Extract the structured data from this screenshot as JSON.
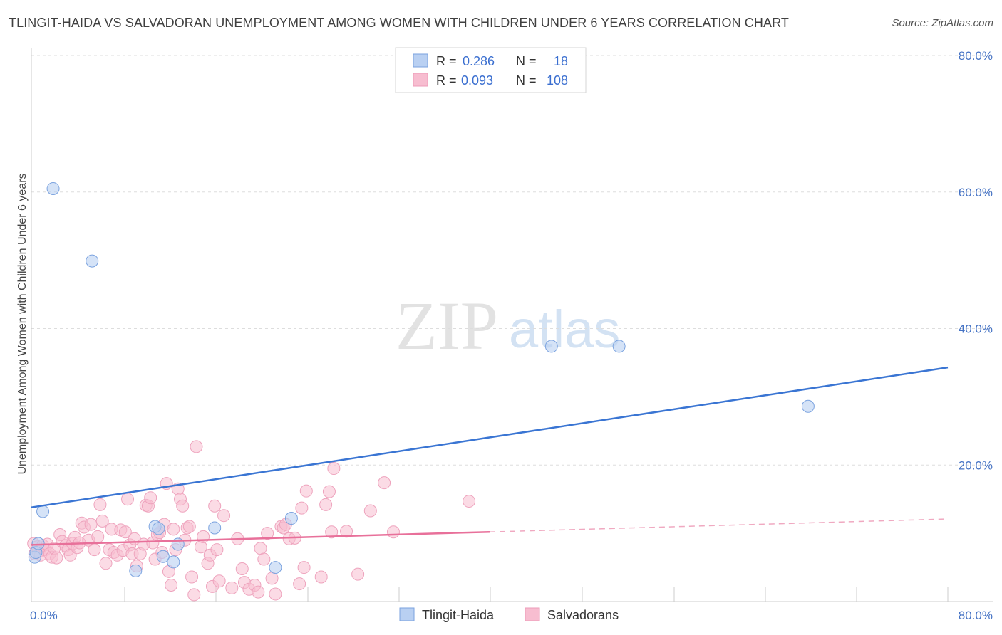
{
  "title": "TLINGIT-HAIDA VS SALVADORAN UNEMPLOYMENT AMONG WOMEN WITH CHILDREN UNDER 6 YEARS CORRELATION CHART",
  "source": "Source: ZipAtlas.com",
  "watermark": {
    "zip": "ZIP",
    "atlas": "atlas"
  },
  "colors": {
    "blue": "#4f86d9",
    "blue_fill": "#b9d0f2",
    "pink": "#e8709a",
    "pink_fill": "#f7bdd0",
    "grid": "#dddddd",
    "tick_text": "#4472c4"
  },
  "legend_top": {
    "rows": [
      {
        "r_label": "R =",
        "r_value": "0.286",
        "n_label": "N =",
        "n_value": "18"
      },
      {
        "r_label": "R =",
        "r_value": "0.093",
        "n_label": "N =",
        "n_value": "108"
      }
    ]
  },
  "legend_bottom": [
    "Tlingit-Haida",
    "Salvadorans"
  ],
  "chart_data": {
    "type": "scatter",
    "title": "TLINGIT-HAIDA VS SALVADORAN UNEMPLOYMENT AMONG WOMEN WITH CHILDREN UNDER 6 YEARS CORRELATION CHART",
    "xlabel": "",
    "ylabel": "Unemployment Among Women with Children Under 6 years",
    "xlim": [
      0,
      80
    ],
    "ylim": [
      0,
      80
    ],
    "x_tick_labels": [
      "0.0%",
      "80.0%"
    ],
    "y_tick_labels": [
      "20.0%",
      "40.0%",
      "60.0%",
      "80.0%"
    ],
    "y_ticks": [
      20,
      40,
      60,
      80
    ],
    "series": [
      {
        "name": "Tlingit-Haida",
        "r": 0.286,
        "n": 18,
        "trend": {
          "x": [
            0,
            80
          ],
          "y": [
            13.8,
            34.3
          ]
        },
        "points": [
          [
            0.3,
            6.5
          ],
          [
            0.4,
            7.2
          ],
          [
            0.6,
            8.5
          ],
          [
            1.0,
            13.2
          ],
          [
            1.9,
            60.5
          ],
          [
            5.3,
            49.9
          ],
          [
            9.1,
            4.5
          ],
          [
            10.8,
            11.0
          ],
          [
            11.1,
            10.7
          ],
          [
            11.5,
            6.6
          ],
          [
            12.4,
            5.8
          ],
          [
            12.8,
            8.4
          ],
          [
            16.0,
            10.8
          ],
          [
            21.3,
            5.0
          ],
          [
            22.7,
            12.2
          ],
          [
            45.4,
            37.4
          ],
          [
            51.3,
            37.4
          ],
          [
            67.8,
            28.6
          ]
        ]
      },
      {
        "name": "Salvadorans",
        "r": 0.093,
        "n": 108,
        "trend": {
          "x": [
            0,
            40
          ],
          "y": [
            8.3,
            10.2
          ]
        },
        "trend_dashed": {
          "x": [
            40,
            80
          ],
          "y": [
            10.2,
            12.1
          ]
        },
        "points": [
          [
            0.2,
            8.5
          ],
          [
            0.3,
            7.0
          ],
          [
            0.5,
            8.0
          ],
          [
            0.6,
            7.3
          ],
          [
            0.8,
            6.8
          ],
          [
            1.0,
            8.2
          ],
          [
            1.2,
            7.6
          ],
          [
            1.4,
            8.4
          ],
          [
            1.6,
            7.0
          ],
          [
            1.8,
            6.5
          ],
          [
            2.0,
            7.8
          ],
          [
            2.2,
            6.4
          ],
          [
            2.5,
            9.8
          ],
          [
            2.7,
            8.8
          ],
          [
            3.0,
            8.2
          ],
          [
            3.2,
            7.6
          ],
          [
            3.4,
            6.8
          ],
          [
            3.6,
            8.5
          ],
          [
            3.8,
            9.4
          ],
          [
            4.0,
            7.9
          ],
          [
            4.2,
            8.6
          ],
          [
            4.4,
            11.5
          ],
          [
            4.6,
            10.9
          ],
          [
            5.0,
            9.0
          ],
          [
            5.2,
            11.3
          ],
          [
            5.5,
            7.6
          ],
          [
            5.8,
            9.5
          ],
          [
            6.0,
            14.2
          ],
          [
            6.2,
            11.8
          ],
          [
            6.5,
            5.6
          ],
          [
            6.8,
            7.6
          ],
          [
            7.0,
            10.6
          ],
          [
            7.2,
            7.2
          ],
          [
            7.5,
            6.8
          ],
          [
            7.8,
            10.5
          ],
          [
            8.0,
            7.5
          ],
          [
            8.2,
            10.2
          ],
          [
            8.4,
            15.0
          ],
          [
            8.6,
            8.3
          ],
          [
            8.8,
            7.0
          ],
          [
            9.0,
            9.2
          ],
          [
            9.2,
            5.2
          ],
          [
            9.5,
            7.0
          ],
          [
            9.8,
            8.4
          ],
          [
            10.0,
            14.1
          ],
          [
            10.2,
            14.0
          ],
          [
            10.4,
            15.2
          ],
          [
            10.6,
            8.6
          ],
          [
            10.8,
            6.2
          ],
          [
            11.0,
            9.8
          ],
          [
            11.2,
            10.1
          ],
          [
            11.4,
            7.2
          ],
          [
            11.6,
            11.3
          ],
          [
            11.8,
            17.3
          ],
          [
            12.0,
            4.4
          ],
          [
            12.2,
            2.4
          ],
          [
            12.4,
            10.6
          ],
          [
            12.6,
            7.6
          ],
          [
            12.8,
            16.5
          ],
          [
            13.0,
            15.0
          ],
          [
            13.2,
            14.0
          ],
          [
            13.4,
            9.0
          ],
          [
            13.6,
            10.8
          ],
          [
            13.8,
            11.0
          ],
          [
            14.0,
            3.6
          ],
          [
            14.2,
            1.0
          ],
          [
            14.4,
            22.7
          ],
          [
            14.8,
            8.0
          ],
          [
            15.0,
            9.5
          ],
          [
            15.4,
            5.6
          ],
          [
            15.6,
            6.8
          ],
          [
            15.8,
            2.2
          ],
          [
            16.0,
            14.0
          ],
          [
            16.2,
            7.6
          ],
          [
            16.4,
            3.0
          ],
          [
            16.8,
            12.6
          ],
          [
            17.5,
            2.0
          ],
          [
            18.0,
            9.2
          ],
          [
            18.4,
            4.8
          ],
          [
            18.6,
            2.8
          ],
          [
            19.0,
            1.8
          ],
          [
            19.5,
            2.4
          ],
          [
            19.8,
            1.4
          ],
          [
            20.0,
            7.8
          ],
          [
            20.3,
            6.2
          ],
          [
            20.6,
            10.0
          ],
          [
            21.0,
            3.4
          ],
          [
            21.3,
            1.1
          ],
          [
            21.8,
            11.0
          ],
          [
            22.0,
            10.8
          ],
          [
            22.5,
            9.2
          ],
          [
            23.0,
            9.3
          ],
          [
            23.4,
            2.6
          ],
          [
            23.6,
            13.7
          ],
          [
            23.8,
            5.0
          ],
          [
            24.0,
            16.2
          ],
          [
            25.3,
            3.6
          ],
          [
            25.7,
            14.2
          ],
          [
            26.0,
            16.1
          ],
          [
            26.4,
            19.5
          ],
          [
            27.5,
            10.3
          ],
          [
            28.5,
            4.0
          ],
          [
            29.6,
            13.3
          ],
          [
            30.8,
            17.4
          ],
          [
            31.6,
            10.2
          ],
          [
            38.2,
            14.7
          ],
          [
            26.2,
            10.2
          ],
          [
            22.2,
            11.3
          ]
        ]
      }
    ]
  }
}
